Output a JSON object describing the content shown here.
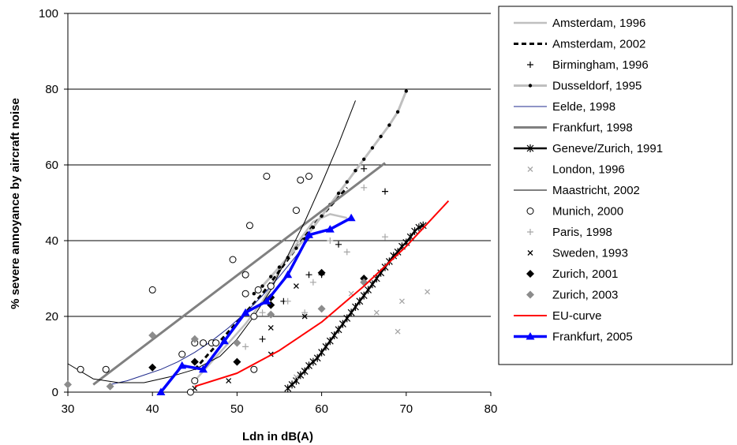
{
  "chart_data": {
    "type": "line",
    "title": "",
    "xlabel": "Ldn in dB(A)",
    "ylabel": "% severe annoyance by aircraft noise",
    "xlim": [
      30,
      80
    ],
    "ylim": [
      0,
      100
    ],
    "xticks": [
      30,
      40,
      50,
      60,
      70,
      80
    ],
    "yticks": [
      0,
      20,
      40,
      60,
      80,
      100
    ],
    "grid": "horizontal",
    "legend": "right",
    "series": [
      {
        "name": "Amsterdam, 1996",
        "style": "line",
        "color": "#bfbfbf",
        "width": 2.5,
        "marker": "none",
        "points": [
          [
            45,
            3
          ],
          [
            47,
            8
          ],
          [
            49,
            13
          ],
          [
            51,
            18
          ],
          [
            53,
            24
          ],
          [
            55,
            32
          ],
          [
            57,
            39
          ],
          [
            59,
            45
          ],
          [
            61,
            47
          ],
          [
            63,
            46
          ]
        ]
      },
      {
        "name": "Amsterdam, 2002",
        "style": "dashed",
        "color": "#000000",
        "width": 3,
        "marker": "none",
        "points": [
          [
            45,
            6
          ],
          [
            47,
            11
          ],
          [
            49,
            16
          ],
          [
            51,
            21
          ],
          [
            53,
            26
          ],
          [
            55,
            32
          ],
          [
            57,
            38
          ],
          [
            59,
            44
          ],
          [
            61,
            49
          ],
          [
            63,
            54
          ]
        ]
      },
      {
        "name": "Birmingham, 1996",
        "style": "markers",
        "color": "#000000",
        "marker": "plus",
        "points": [
          [
            53,
            14
          ],
          [
            55.5,
            24
          ],
          [
            58.5,
            31
          ],
          [
            60,
            31
          ],
          [
            62,
            39
          ],
          [
            65,
            59
          ],
          [
            67.5,
            53
          ]
        ]
      },
      {
        "name": "Dusseldorf, 1995",
        "style": "line",
        "color": "#bfbfbf",
        "width": 3,
        "marker": "dot",
        "points": [
          [
            52,
            26
          ],
          [
            53,
            28
          ],
          [
            54,
            30.5
          ],
          [
            55,
            33
          ],
          [
            56,
            35.5
          ],
          [
            57,
            38
          ],
          [
            58,
            40.5
          ],
          [
            59,
            43.5
          ],
          [
            60,
            46.5
          ],
          [
            61,
            49.5
          ],
          [
            62,
            52.5
          ],
          [
            63,
            55.5
          ],
          [
            64,
            58.5
          ],
          [
            65,
            61.5
          ],
          [
            66,
            64.5
          ],
          [
            67,
            67.5
          ],
          [
            68,
            70.5
          ],
          [
            69,
            74
          ],
          [
            70,
            79.5
          ]
        ]
      },
      {
        "name": "Eelde, 1998",
        "style": "line",
        "color": "#1f2a8c",
        "width": 1,
        "marker": "none",
        "points": [
          [
            35,
            2
          ],
          [
            37,
            3
          ],
          [
            39,
            4.5
          ],
          [
            41,
            6
          ],
          [
            43,
            8
          ],
          [
            45,
            10.5
          ],
          [
            47,
            13.5
          ],
          [
            49,
            17
          ],
          [
            51,
            21
          ],
          [
            53,
            25.5
          ],
          [
            55,
            30.5
          ],
          [
            57,
            36
          ],
          [
            59,
            42
          ]
        ]
      },
      {
        "name": "Frankfurt, 1998",
        "style": "line",
        "color": "#808080",
        "width": 3,
        "marker": "none",
        "points": [
          [
            33,
            2
          ],
          [
            67.5,
            60.5
          ]
        ]
      },
      {
        "name": "Geneve/Zurich, 1991",
        "style": "line",
        "color": "#000000",
        "width": 2.5,
        "marker": "star",
        "points": [
          [
            56,
            1
          ],
          [
            56.5,
            2
          ],
          [
            57,
            3
          ],
          [
            57.5,
            4.5
          ],
          [
            58,
            5.5
          ],
          [
            58.5,
            7
          ],
          [
            59,
            8
          ],
          [
            59.5,
            9
          ],
          [
            60,
            10.5
          ],
          [
            60.5,
            12
          ],
          [
            61,
            13.5
          ],
          [
            61.5,
            15
          ],
          [
            62,
            16.5
          ],
          [
            62.5,
            18
          ],
          [
            63,
            19.5
          ],
          [
            63.5,
            21
          ],
          [
            64,
            22.5
          ],
          [
            64.5,
            24
          ],
          [
            65,
            25.5
          ],
          [
            65.5,
            27
          ],
          [
            66,
            28.5
          ],
          [
            66.5,
            30
          ],
          [
            67,
            31.5
          ],
          [
            67.5,
            33
          ],
          [
            68,
            34.5
          ],
          [
            68.5,
            36
          ],
          [
            69,
            37
          ],
          [
            69.5,
            38.5
          ],
          [
            70,
            39.5
          ],
          [
            70.5,
            41
          ],
          [
            71,
            42.5
          ],
          [
            71.5,
            43.5
          ],
          [
            72,
            44
          ]
        ]
      },
      {
        "name": "London, 1996",
        "style": "markers",
        "color": "#a6a6a6",
        "marker": "x",
        "points": [
          [
            57,
            4
          ],
          [
            63.5,
            26
          ],
          [
            66.5,
            21
          ],
          [
            69.5,
            24
          ],
          [
            72.5,
            26.5
          ],
          [
            69,
            16
          ]
        ]
      },
      {
        "name": "Maastricht, 2002",
        "style": "line",
        "color": "#000000",
        "width": 1,
        "marker": "none",
        "points": [
          [
            30,
            7.5
          ],
          [
            33,
            3.5
          ],
          [
            36,
            2.5
          ],
          [
            39,
            2.5
          ],
          [
            42,
            4
          ],
          [
            45,
            6
          ],
          [
            48,
            9.5
          ],
          [
            50,
            14
          ],
          [
            52,
            20
          ],
          [
            54,
            27
          ],
          [
            56,
            36
          ],
          [
            58,
            45
          ],
          [
            60,
            55
          ],
          [
            62,
            65.5
          ],
          [
            64,
            77
          ]
        ]
      },
      {
        "name": "Munich, 2000",
        "style": "markers",
        "color": "#000000",
        "marker": "circle",
        "points": [
          [
            31.5,
            6
          ],
          [
            34.5,
            6
          ],
          [
            40,
            27
          ],
          [
            43.5,
            10
          ],
          [
            44.5,
            0
          ],
          [
            45,
            3
          ],
          [
            45,
            13
          ],
          [
            46,
            13
          ],
          [
            47,
            13
          ],
          [
            47.5,
            13
          ],
          [
            49.5,
            35
          ],
          [
            51,
            31
          ],
          [
            51.5,
            44
          ],
          [
            51,
            26
          ],
          [
            52,
            20
          ],
          [
            52,
            6
          ],
          [
            52.5,
            27
          ],
          [
            53.5,
            57
          ],
          [
            54,
            28
          ],
          [
            57,
            48
          ],
          [
            57.5,
            56
          ],
          [
            58.5,
            57
          ]
        ]
      },
      {
        "name": "Paris, 1998",
        "style": "markers",
        "color": "#a6a6a6",
        "marker": "plus",
        "points": [
          [
            51,
            12
          ],
          [
            53,
            21
          ],
          [
            56,
            24
          ],
          [
            58,
            21
          ],
          [
            59,
            29
          ],
          [
            61,
            40
          ],
          [
            63,
            37
          ],
          [
            65,
            54
          ],
          [
            67.5,
            41
          ]
        ]
      },
      {
        "name": "Sweden, 1993",
        "style": "markers",
        "color": "#000000",
        "marker": "x",
        "points": [
          [
            45,
            1
          ],
          [
            49,
            3
          ],
          [
            54,
            10
          ],
          [
            54,
            17
          ],
          [
            57,
            28
          ],
          [
            58,
            20
          ]
        ]
      },
      {
        "name": "Zurich, 2001",
        "style": "markers",
        "color": "#000000",
        "marker": "diamond",
        "points": [
          [
            40,
            6.5
          ],
          [
            45,
            8
          ],
          [
            50,
            8
          ],
          [
            54,
            23
          ],
          [
            54,
            25
          ],
          [
            60,
            31.5
          ],
          [
            65,
            30
          ]
        ]
      },
      {
        "name": "Zurich, 2003",
        "style": "markers",
        "color": "#8c8c8c",
        "marker": "diamond",
        "points": [
          [
            30,
            2
          ],
          [
            35,
            1.5
          ],
          [
            40,
            15
          ],
          [
            45,
            14
          ],
          [
            50,
            13
          ],
          [
            54,
            20.5
          ],
          [
            60,
            22
          ],
          [
            65,
            29
          ]
        ]
      },
      {
        "name": "EU-curve",
        "style": "line",
        "color": "#ff0000",
        "width": 2,
        "marker": "none",
        "points": [
          [
            45,
            1.5
          ],
          [
            50,
            5
          ],
          [
            55,
            11
          ],
          [
            60,
            18.5
          ],
          [
            65,
            28
          ],
          [
            70,
            38.5
          ],
          [
            75,
            50.5
          ]
        ]
      },
      {
        "name": "Frankfurt, 2005",
        "style": "line",
        "color": "#0000ff",
        "width": 3.5,
        "marker": "triangle",
        "points": [
          [
            41,
            0
          ],
          [
            43.5,
            7
          ],
          [
            46,
            6
          ],
          [
            48.5,
            13.5
          ],
          [
            51,
            21
          ],
          [
            53.5,
            24
          ],
          [
            56,
            31
          ],
          [
            58.5,
            41.5
          ],
          [
            61,
            43
          ],
          [
            63.5,
            46
          ]
        ]
      }
    ]
  },
  "colors": {
    "legend_frankfurt_2005_text": "#0000ff",
    "legend_eu_text": "#ff0000",
    "grid": "#000000"
  }
}
